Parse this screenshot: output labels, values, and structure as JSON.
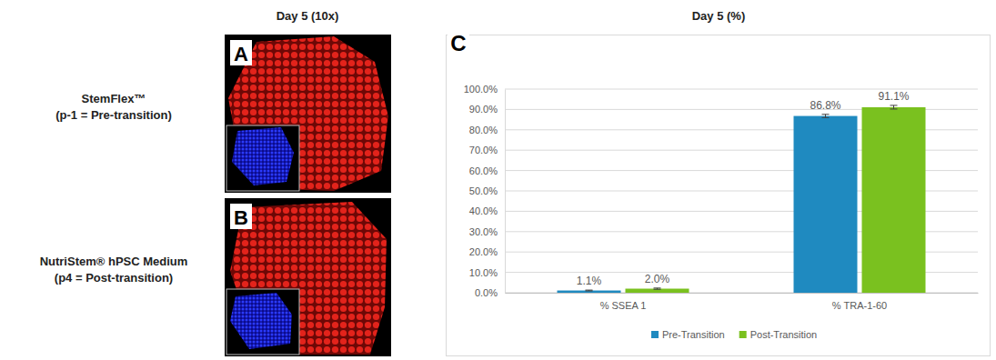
{
  "chart_data": {
    "type": "bar",
    "title": "Day 5 (%)",
    "categories": [
      "% SSEA 1",
      "% TRA-1-60"
    ],
    "series": [
      {
        "name": "Pre-Transition",
        "color": "#1f8ac0",
        "values": [
          1.1,
          86.8
        ],
        "value_labels": [
          "1.1%",
          "86.8%"
        ],
        "errors": [
          0.2,
          0.8
        ]
      },
      {
        "name": "Post-Transition",
        "color": "#7ac11f",
        "values": [
          2.0,
          91.1
        ],
        "value_labels": [
          "2.0%",
          "91.1%"
        ],
        "errors": [
          0.3,
          0.9
        ]
      }
    ],
    "ylim": [
      0,
      100
    ],
    "yticks": [
      {
        "value": 0,
        "label": "0.0%"
      },
      {
        "value": 10,
        "label": "10.0%"
      },
      {
        "value": 20,
        "label": "20.0%"
      },
      {
        "value": 30,
        "label": "30.0%"
      },
      {
        "value": 40,
        "label": "40.0%"
      },
      {
        "value": 50,
        "label": "50.0%"
      },
      {
        "value": 60,
        "label": "60.0%"
      },
      {
        "value": 70,
        "label": "70.0%"
      },
      {
        "value": 80,
        "label": "80.0%"
      },
      {
        "value": 90,
        "label": "90.0%"
      },
      {
        "value": 100,
        "label": "100.0%"
      }
    ],
    "grid": true,
    "legend": "bottom",
    "data_labels": true
  },
  "figure": {
    "column_title": "Day 5 (10x)",
    "panel_letters": [
      "A",
      "B",
      "C"
    ],
    "row_labels": [
      [
        "StemFlex™",
        "(p-1 = Pre-transition)"
      ],
      [
        "NutriStem® hPSC Medium",
        "(p4 = Post-transition)"
      ]
    ]
  }
}
